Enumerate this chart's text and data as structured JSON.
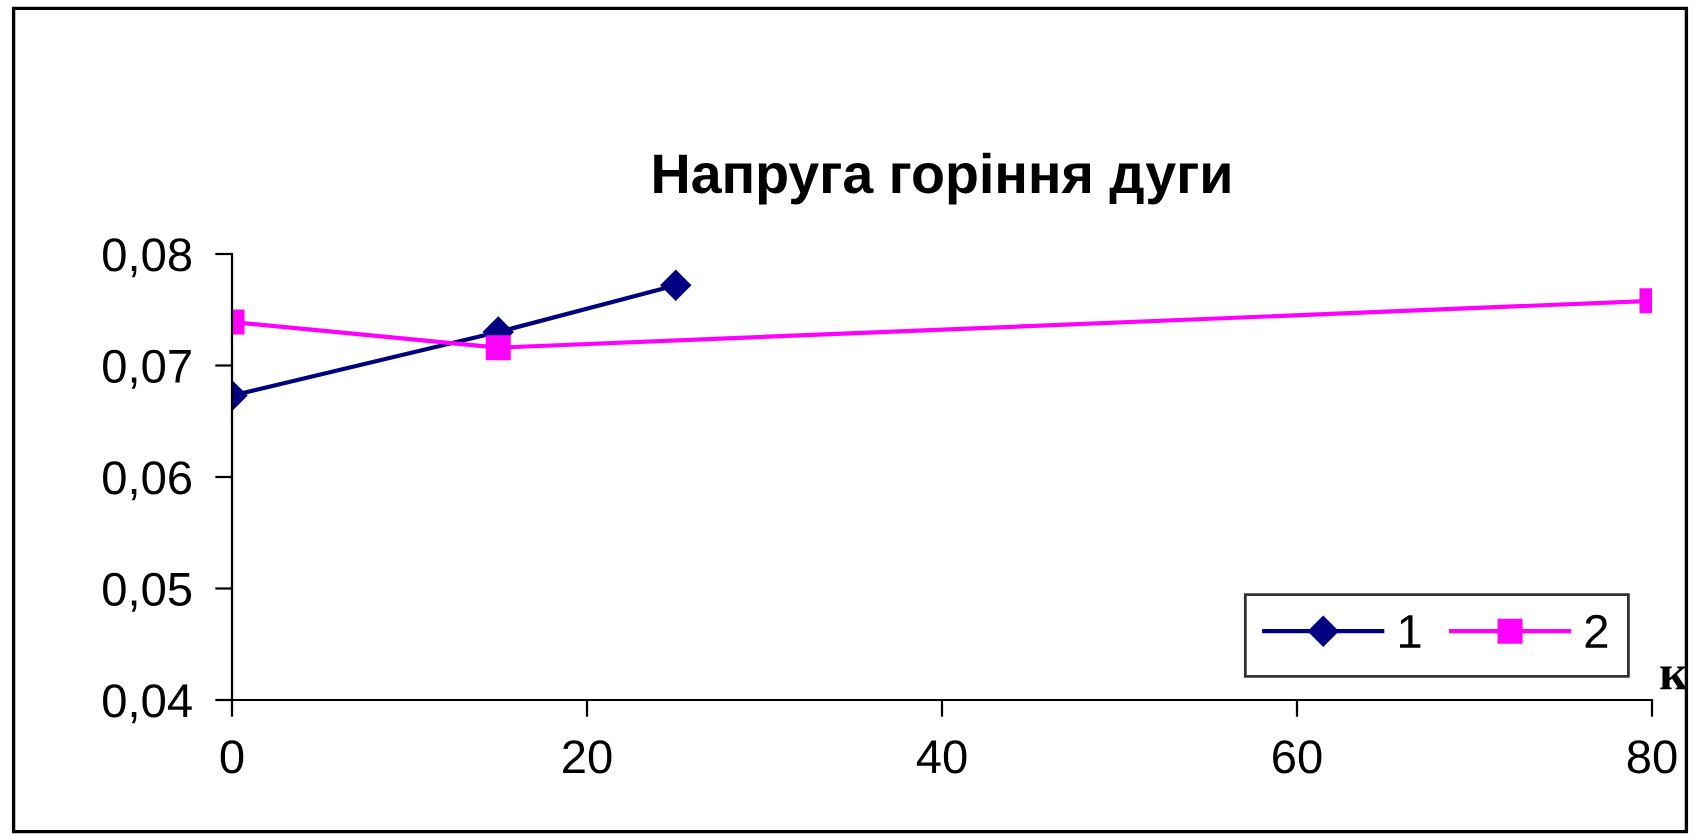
{
  "chart_data": {
    "type": "line",
    "title": "Напруга горіння дуги",
    "xlabel": "к",
    "xlim": [
      0,
      80
    ],
    "xticks": [
      0,
      20,
      40,
      60,
      80
    ],
    "ylim": [
      0.04,
      0.08
    ],
    "yticks": [
      {
        "value": 0.04,
        "label": "0,04"
      },
      {
        "value": 0.05,
        "label": "0,05"
      },
      {
        "value": 0.06,
        "label": "0,06"
      },
      {
        "value": 0.07,
        "label": "0,07"
      },
      {
        "value": 0.08,
        "label": "0,08"
      }
    ],
    "grid": false,
    "legend": "bottom right",
    "series": [
      {
        "name": "1",
        "color": "#000080",
        "marker": "diamond",
        "x": [
          0,
          15,
          25
        ],
        "values": [
          0.0673,
          0.073,
          0.0772
        ]
      },
      {
        "name": "2",
        "color": "#ff00ff",
        "marker": "square",
        "x": [
          0,
          15,
          80
        ],
        "values": [
          0.0739,
          0.0716,
          0.0758
        ]
      }
    ]
  }
}
